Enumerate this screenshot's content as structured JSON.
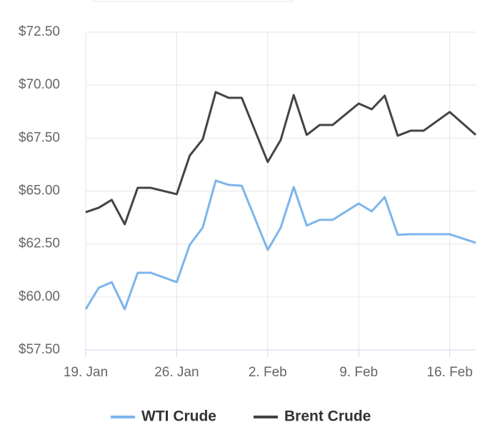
{
  "chart_data": {
    "type": "line",
    "x": [
      19,
      20,
      21,
      22,
      23,
      24,
      26,
      27,
      28,
      29,
      30,
      31,
      33,
      34,
      35,
      36,
      37,
      38,
      40,
      41,
      42,
      43,
      44,
      45,
      47,
      49
    ],
    "series": [
      {
        "name": "WTI Crude",
        "color": "#7cb5ec",
        "values": [
          59.42,
          60.43,
          60.7,
          59.42,
          61.14,
          61.14,
          60.7,
          62.46,
          63.27,
          65.49,
          65.29,
          65.25,
          62.22,
          63.27,
          65.19,
          63.37,
          63.64,
          63.64,
          64.41,
          64.04,
          64.71,
          62.93,
          62.96,
          62.96,
          62.96,
          62.56
        ]
      },
      {
        "name": "Brent Crude",
        "color": "#434348",
        "values": [
          64.0,
          64.21,
          64.58,
          63.43,
          65.15,
          65.15,
          64.85,
          66.67,
          67.44,
          69.67,
          69.4,
          69.4,
          66.37,
          67.41,
          69.53,
          67.65,
          68.12,
          68.12,
          69.13,
          68.86,
          69.5,
          67.61,
          67.85,
          67.85,
          68.73,
          67.65
        ]
      }
    ],
    "xlim": [
      19,
      49
    ],
    "xticks": [
      {
        "value": 19,
        "label": "19. Jan"
      },
      {
        "value": 26,
        "label": "26. Jan"
      },
      {
        "value": 33,
        "label": "2. Feb"
      },
      {
        "value": 40,
        "label": "9. Feb"
      },
      {
        "value": 47,
        "label": "16. Feb"
      }
    ],
    "ylim": [
      57.5,
      72.5
    ],
    "yticks": [
      {
        "value": 57.5,
        "label": "$57.50"
      },
      {
        "value": 60,
        "label": "$60.00"
      },
      {
        "value": 62.5,
        "label": "$62.50"
      },
      {
        "value": 65,
        "label": "$65.00"
      },
      {
        "value": 67.5,
        "label": "$67.50"
      },
      {
        "value": 70,
        "label": "$70.00"
      },
      {
        "value": 72.5,
        "label": "$72.50"
      }
    ],
    "grid": true,
    "legend": "bottom"
  }
}
